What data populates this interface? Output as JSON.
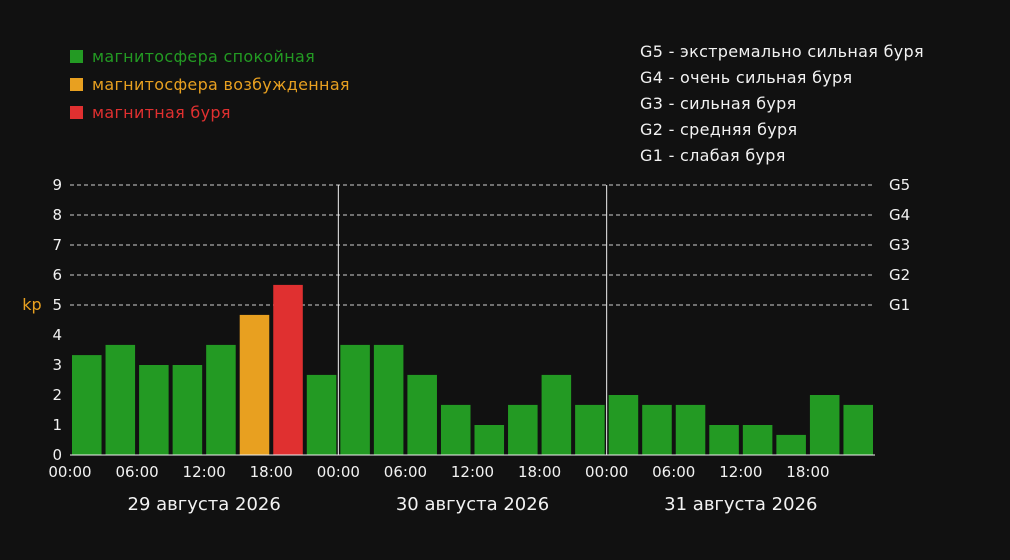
{
  "colors": {
    "background": "#111111",
    "quiet": "#239a23",
    "active": "#e8a020",
    "storm": "#e03030",
    "text": "#f2f2f2",
    "kp_label": "#e8a020"
  },
  "legend": [
    {
      "label": "магнитосфера спокойная",
      "color": "#239a23"
    },
    {
      "label": "магнитосфера возбужденная",
      "color": "#e8a020"
    },
    {
      "label": "магнитная буря",
      "color": "#e03030"
    }
  ],
  "storm_scale": [
    {
      "label": "G5 - экстремально сильная буря"
    },
    {
      "label": "G4 - очень сильная буря"
    },
    {
      "label": "G3 - сильная буря"
    },
    {
      "label": "G2 - средняя буря"
    },
    {
      "label": "G1 - слабая буря"
    }
  ],
  "chart_data": {
    "type": "bar",
    "ylabel": "kp",
    "ylim": [
      0,
      9
    ],
    "yticks": [
      "0",
      "1",
      "2",
      "3",
      "4",
      "5",
      "6",
      "7",
      "8",
      "9"
    ],
    "g_levels": [
      {
        "label": "G1",
        "value": 5
      },
      {
        "label": "G2",
        "value": 6
      },
      {
        "label": "G3",
        "value": 7
      },
      {
        "label": "G4",
        "value": 8
      },
      {
        "label": "G5",
        "value": 9
      }
    ],
    "grid": "dashed horizontal at kp 5–9",
    "days": [
      {
        "label": "29 августа 2026",
        "ticks": [
          "00:00",
          "06:00",
          "12:00",
          "18:00"
        ],
        "values": [
          3.33,
          3.67,
          3.0,
          3.0,
          3.67,
          4.67,
          5.67,
          2.67
        ],
        "levels": [
          "quiet",
          "quiet",
          "quiet",
          "quiet",
          "quiet",
          "active",
          "storm",
          "quiet"
        ]
      },
      {
        "label": "30 августа 2026",
        "ticks": [
          "00:00",
          "06:00",
          "12:00",
          "18:00"
        ],
        "values": [
          3.67,
          3.67,
          2.67,
          1.67,
          1.0,
          1.67,
          2.67,
          1.67
        ],
        "levels": [
          "quiet",
          "quiet",
          "quiet",
          "quiet",
          "quiet",
          "quiet",
          "quiet",
          "quiet"
        ]
      },
      {
        "label": "31 августа 2026",
        "ticks": [
          "00:00",
          "06:00",
          "12:00",
          "18:00"
        ],
        "values": [
          2.0,
          1.67,
          1.67,
          1.0,
          1.0,
          0.67,
          2.0,
          1.67
        ],
        "levels": [
          "quiet",
          "quiet",
          "quiet",
          "quiet",
          "quiet",
          "quiet",
          "quiet",
          "quiet"
        ]
      }
    ]
  }
}
